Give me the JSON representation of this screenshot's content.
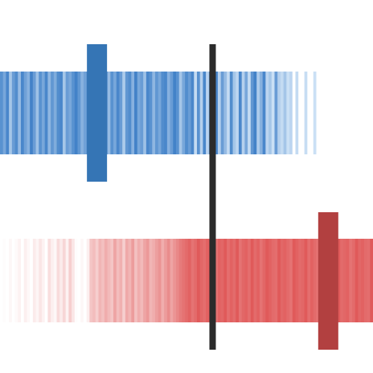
{
  "chart_data": {
    "type": "heatmap",
    "title": "",
    "xlabel": "",
    "ylabel": "",
    "grid": false,
    "legend": "none",
    "n_cells": 125,
    "colors": {
      "low_blue": "#3b7dc6",
      "low_blue_light": "#d3e5f7",
      "high_red": "#e05a5a",
      "high_red_light": "#ffffff",
      "low_marker": "#3575b5",
      "high_marker": "#b24040",
      "divider": "#2b2b2b",
      "background": "#ffffff"
    },
    "divider_position": 0.57,
    "strips": [
      {
        "palette": "blue",
        "marker_position": 0.26,
        "values": [
          0.8,
          0.6,
          0.9,
          0.3,
          0.7,
          0.85,
          0.4,
          0.9,
          0.65,
          0.5,
          0.95,
          0.7,
          0.35,
          0.8,
          0.6,
          0.9,
          0.45,
          0.75,
          0.55,
          0.85,
          0.9,
          0.3,
          0.7,
          0.6,
          0.8,
          0.95,
          0.75,
          0.5,
          0.65,
          0.9,
          0.35,
          0.3,
          0.85,
          0.55,
          0.7,
          0.95,
          0.4,
          0.8,
          0.6,
          0.9,
          0.7,
          0.25,
          0.75,
          0.85,
          0.5,
          0.95,
          0.6,
          0.7,
          0.35,
          0.9,
          0.8,
          0.45,
          0.75,
          0.6,
          0.85,
          0.9,
          0.5,
          0.7,
          0.95,
          0.8,
          0.3,
          0.6,
          0.85,
          0.7,
          0.9,
          0.1,
          0.8,
          0.2,
          0.9,
          0.15,
          0.75,
          0.5,
          0.9,
          0.2,
          0.7,
          0.4,
          0.1,
          0.85,
          0.3,
          0.15,
          0.9,
          0.2,
          0.6,
          0.1,
          0.75,
          0.95,
          0.25,
          0.5,
          0.9,
          0.15,
          0.3,
          0.05,
          0.7,
          0.2,
          0.1,
          0.3,
          0.05,
          0.15,
          0.0,
          0.1,
          0.02,
          0.0,
          0.08,
          0.0,
          0.0,
          0.05,
          0.0,
          0.02,
          0.0,
          0.0,
          0.04,
          0.0,
          0.0,
          0.02,
          0.0,
          0.0,
          0.03,
          0.0,
          0.0,
          0.0,
          0.02,
          0.0,
          0.0,
          0.0,
          0.0
        ]
      },
      {
        "palette": "red",
        "marker_position": 0.88,
        "values": [
          0.0,
          0.02,
          0.0,
          0.05,
          0.0,
          0.03,
          0.08,
          0.0,
          0.1,
          0.04,
          0.0,
          0.12,
          0.06,
          0.15,
          0.08,
          0.0,
          0.2,
          0.1,
          0.05,
          0.22,
          0.12,
          0.25,
          0.08,
          0.3,
          0.15,
          0.02,
          0.0,
          0.05,
          0.0,
          0.1,
          0.35,
          0.4,
          0.3,
          0.45,
          0.38,
          0.5,
          0.42,
          0.35,
          0.55,
          0.4,
          0.48,
          0.3,
          0.52,
          0.45,
          0.6,
          0.38,
          0.5,
          0.42,
          0.55,
          0.62,
          0.45,
          0.5,
          0.58,
          0.65,
          0.5,
          0.6,
          0.7,
          0.55,
          0.65,
          0.72,
          0.8,
          0.85,
          0.9,
          0.95,
          0.85,
          0.9,
          1.0,
          0.92,
          0.88,
          0.95,
          1.0,
          0.9,
          0.85,
          0.95,
          0.92,
          1.0,
          0.88,
          0.95,
          0.9,
          1.0,
          0.85,
          0.92,
          0.95,
          0.88,
          1.0,
          0.9,
          0.95,
          0.85,
          0.92,
          1.0,
          0.95,
          0.9,
          0.88,
          1.0,
          0.92,
          0.95,
          0.9,
          0.85,
          1.0,
          0.95,
          0.9,
          0.92,
          1.0,
          0.88,
          0.95,
          0.9,
          0.85,
          0.95,
          1.0,
          0.92,
          0.9,
          0.88,
          0.95,
          1.0,
          0.9,
          0.92,
          0.95,
          0.85,
          0.9,
          1.0,
          0.92,
          0.95,
          0.9,
          0.88,
          1.0
        ]
      }
    ]
  }
}
